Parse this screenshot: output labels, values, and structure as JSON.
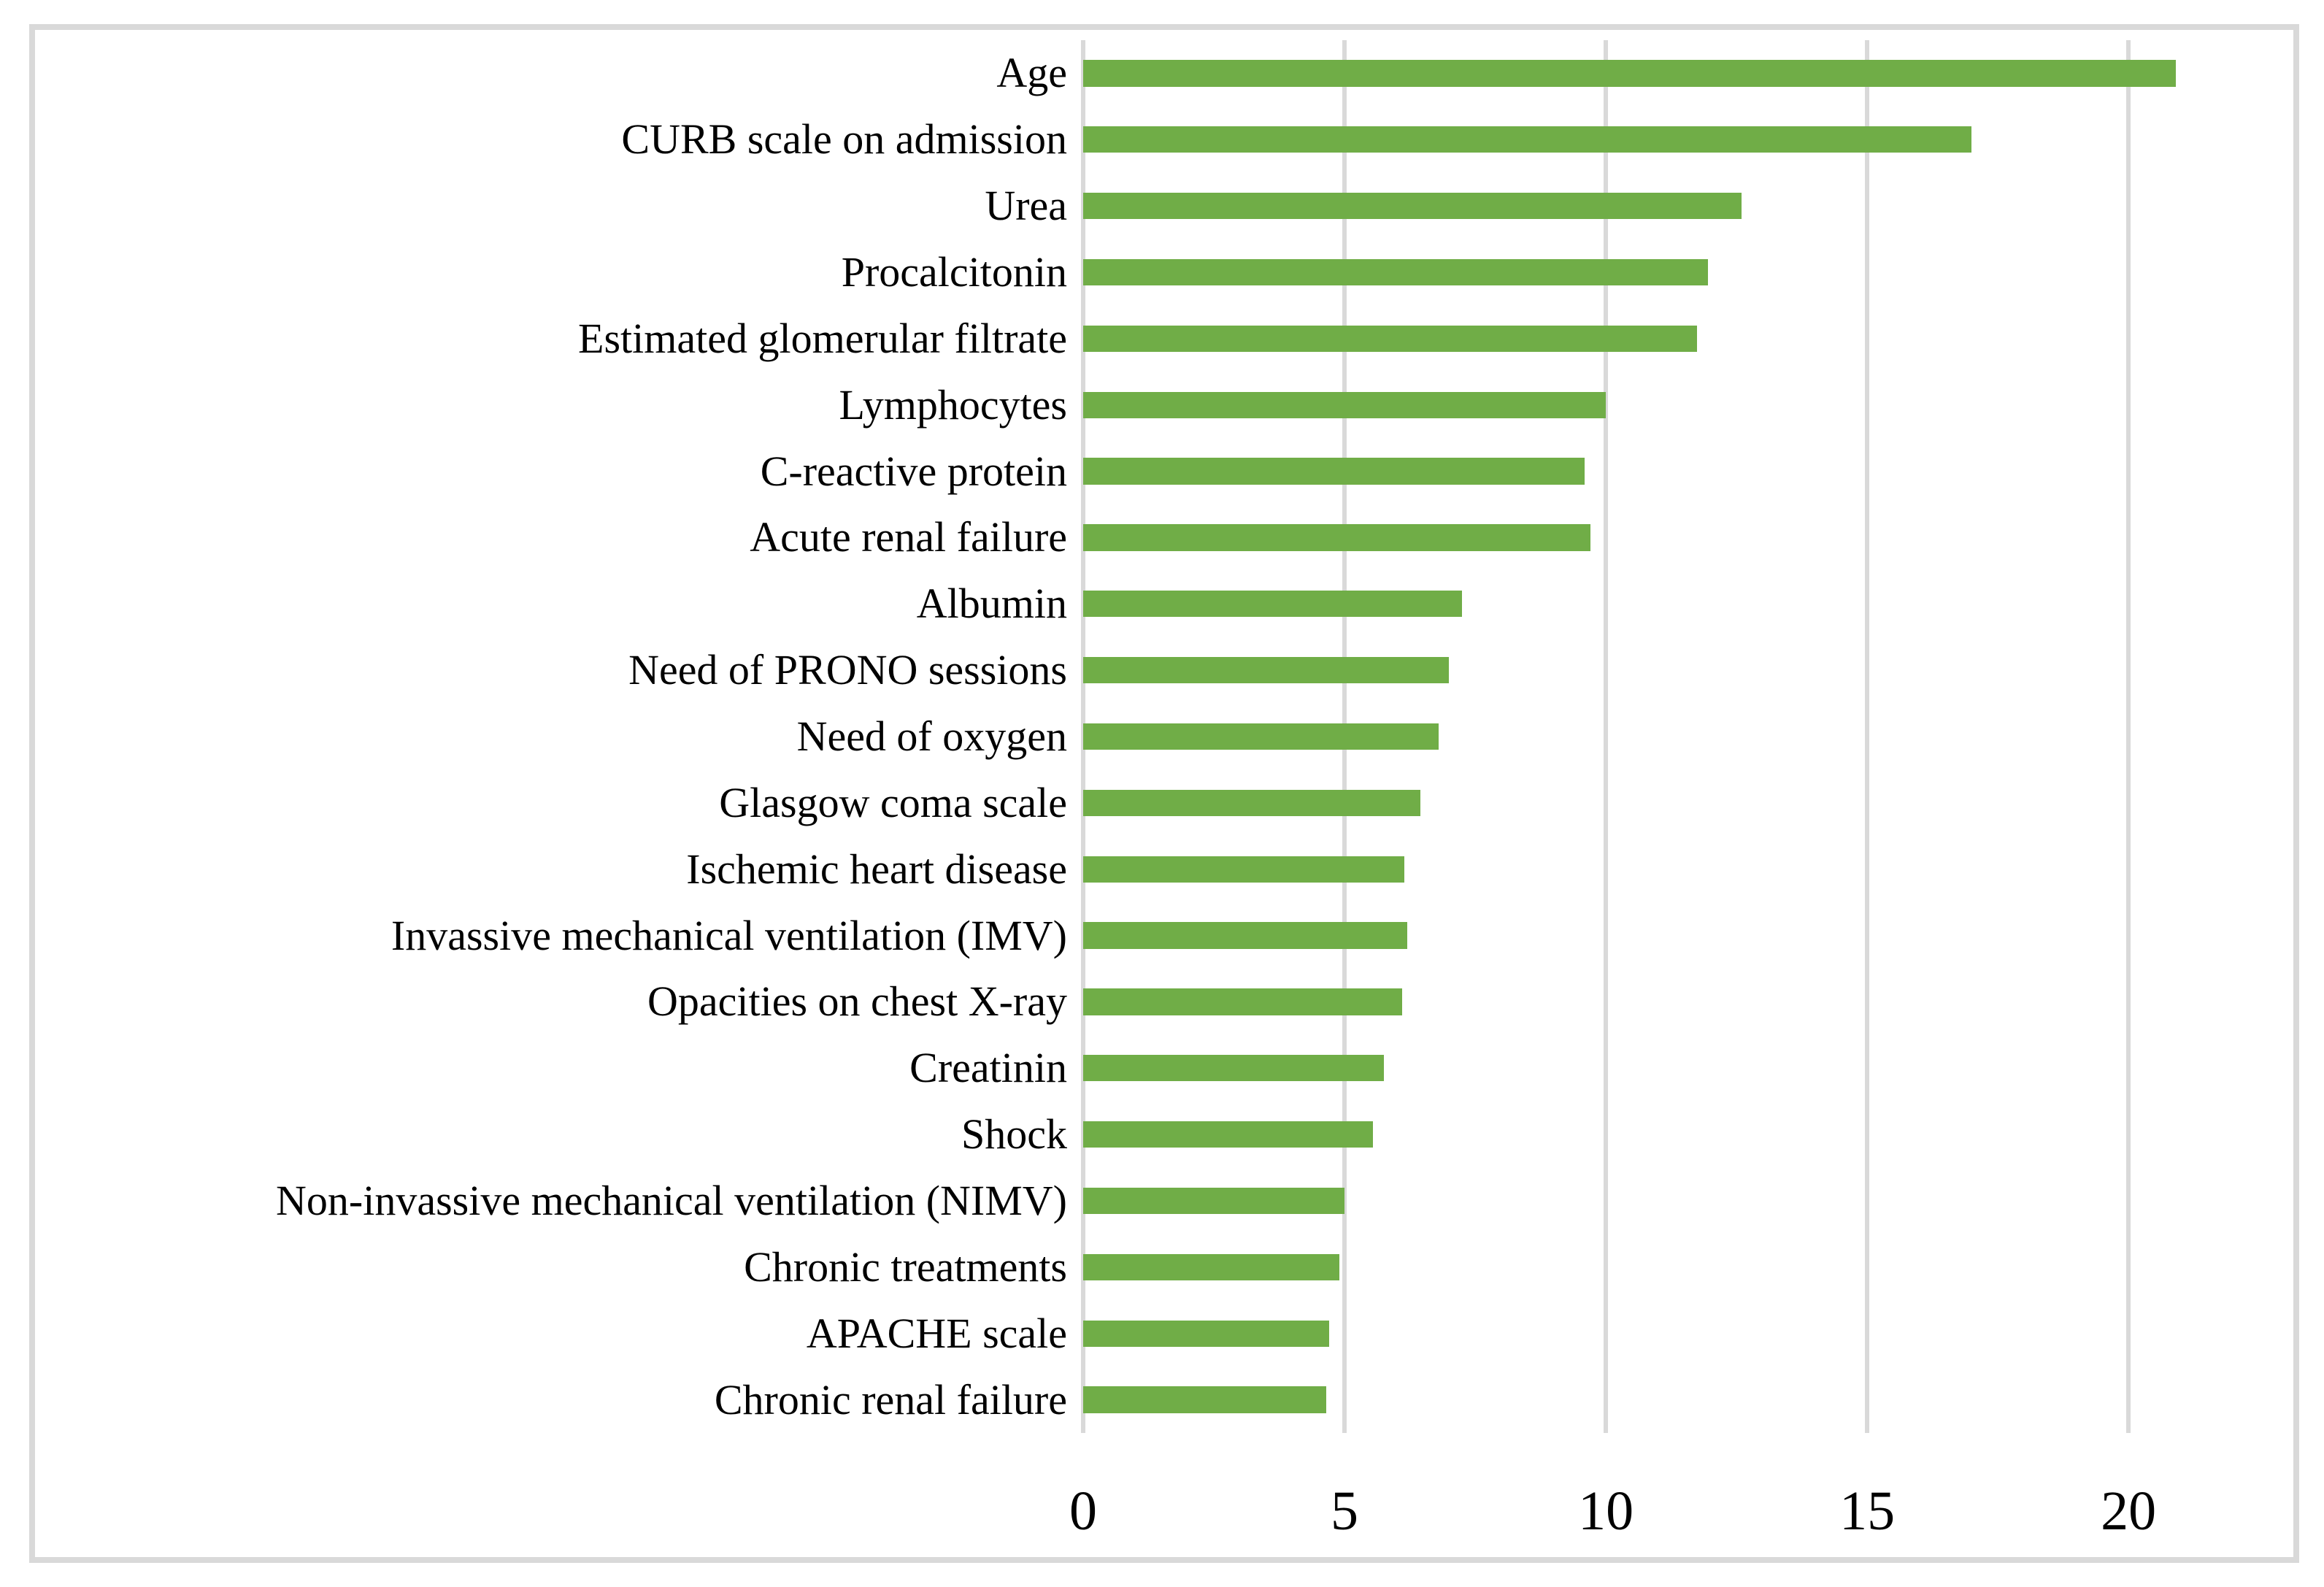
{
  "figure": {
    "type": "standalone-chart-figure",
    "border_color": "#d9d9d9",
    "background_color": "#ffffff"
  },
  "chart_data": {
    "type": "bar",
    "orientation": "horizontal",
    "title": "",
    "xlabel": "",
    "ylabel": "",
    "categories": [
      "Age",
      "CURB scale on admission",
      "Urea",
      "Procalcitonin",
      "Estimated glomerular filtrate",
      "Lymphocytes",
      "C-reactive protein",
      "Acute renal failure",
      "Albumin",
      "Need of PRONO sessions",
      "Need of oxygen",
      "Glasgow coma scale",
      "Ischemic heart disease",
      "Invassive mechanical ventilation (IMV)",
      "Opacities on chest X-ray",
      "Creatinin",
      "Shock",
      "Non-invassive mechanical ventilation (NIMV)",
      "Chronic treatments",
      "APACHE scale",
      "Chronic renal failure"
    ],
    "values": [
      20.9,
      17.0,
      12.6,
      11.95,
      11.75,
      10.0,
      9.6,
      9.7,
      7.25,
      7.0,
      6.8,
      6.45,
      6.15,
      6.2,
      6.1,
      5.75,
      5.55,
      5.0,
      4.9,
      4.7,
      4.65
    ],
    "x_ticks": [
      0,
      5,
      10,
      15,
      20
    ],
    "xlim": [
      0,
      23
    ],
    "grid": true,
    "legend": false,
    "bar_color": "#70ad47",
    "gridline_color": "#d9d9d9",
    "text_color": "#000000"
  }
}
